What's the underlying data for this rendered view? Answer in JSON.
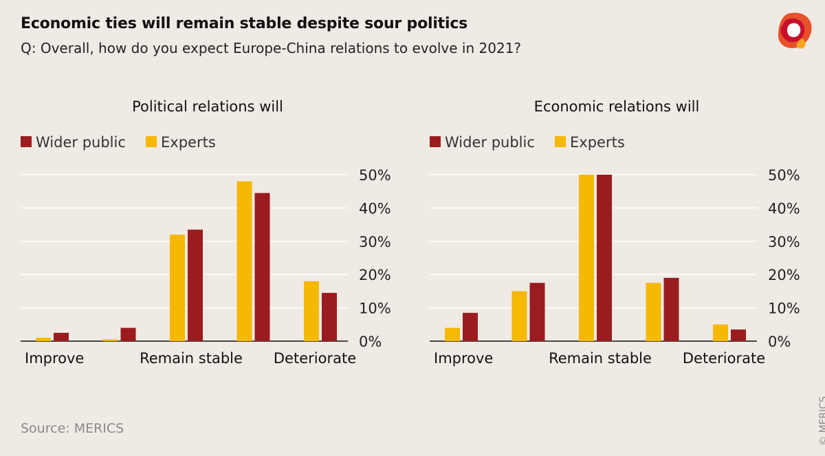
{
  "title": "Economic ties will remain stable despite sour politics",
  "subtitle": "Q: Overall, how do you expect Europe-China relations to evolve in 2021?",
  "source": "Source: MERICS",
  "copyright": "© MERICS",
  "logo": {
    "icon": "merics-logo-icon",
    "colors": [
      "#e8512a",
      "#c8102e",
      "#f5a623"
    ]
  },
  "colors": {
    "wider_public": "#9b1c1f",
    "experts": "#f6b800",
    "grid": "#ffffff",
    "background": "#efeae4"
  },
  "chart_data": [
    {
      "type": "bar",
      "title": "Political relations will",
      "legend": [
        "Wider public",
        "Experts"
      ],
      "y_ticks": [
        "50%",
        "40%",
        "30%",
        "20%",
        "10%",
        "0%"
      ],
      "ylim": [
        0,
        50
      ],
      "axis_labels": [
        "Improve",
        "Remain stable",
        "Deteriorate"
      ],
      "groups": [
        {
          "experts": 1,
          "wider_public": 2.5
        },
        {
          "experts": 0.5,
          "wider_public": 4
        },
        {
          "experts": 32,
          "wider_public": 33.5
        },
        {
          "experts": 48,
          "wider_public": 44.5
        },
        {
          "experts": 18,
          "wider_public": 14.5
        }
      ]
    },
    {
      "type": "bar",
      "title": "Economic relations will",
      "legend": [
        "Wider public",
        "Experts"
      ],
      "y_ticks": [
        "50%",
        "40%",
        "30%",
        "20%",
        "10%",
        "0%"
      ],
      "ylim": [
        0,
        50
      ],
      "axis_labels": [
        "Improve",
        "Remain stable",
        "Deteriorate"
      ],
      "groups": [
        {
          "experts": 4,
          "wider_public": 8.5
        },
        {
          "experts": 15,
          "wider_public": 17.5
        },
        {
          "experts": 50,
          "wider_public": 50
        },
        {
          "experts": 17.5,
          "wider_public": 19
        },
        {
          "experts": 5,
          "wider_public": 3.5
        }
      ]
    }
  ]
}
